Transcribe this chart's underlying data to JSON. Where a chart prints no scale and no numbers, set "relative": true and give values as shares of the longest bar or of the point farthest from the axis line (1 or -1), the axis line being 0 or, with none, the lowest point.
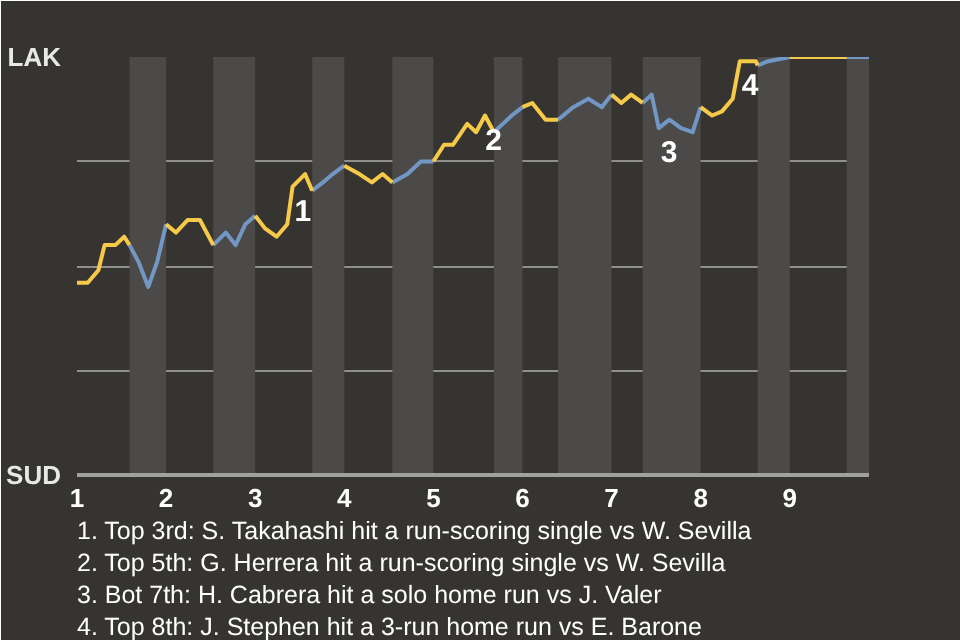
{
  "chart_data": {
    "type": "line",
    "relative": true,
    "x": [
      1.0,
      1.12,
      1.24,
      1.31,
      1.43,
      1.53,
      1.59,
      1.69,
      1.8,
      1.9,
      2.0,
      2.11,
      2.24,
      2.38,
      2.53,
      2.67,
      2.78,
      2.89,
      3.0,
      3.11,
      3.24,
      3.36,
      3.42,
      3.56,
      3.64,
      3.76,
      3.87,
      4.0,
      4.17,
      4.31,
      4.43,
      4.54,
      4.71,
      4.86,
      5.0,
      5.12,
      5.22,
      5.38,
      5.48,
      5.58,
      5.68,
      5.78,
      5.88,
      6.0,
      6.11,
      6.26,
      6.4,
      6.57,
      6.74,
      6.89,
      7.0,
      7.11,
      7.22,
      7.35,
      7.45,
      7.53,
      7.65,
      7.78,
      7.91,
      8.0,
      8.13,
      8.24,
      8.36,
      8.44,
      8.62,
      8.64,
      8.76,
      9.0,
      9.64,
      9.89
    ],
    "series": [
      {
        "color": "#f7c948",
        "values": [
          0.46,
          0.46,
          0.49,
          0.55,
          0.55,
          0.57,
          0.55,
          null,
          null,
          null,
          0.6,
          0.58,
          0.61,
          0.61,
          0.55,
          null,
          null,
          null,
          0.62,
          0.59,
          0.57,
          0.6,
          0.69,
          0.72,
          0.68,
          null,
          null,
          0.74,
          0.72,
          0.7,
          0.72,
          0.7,
          null,
          null,
          0.75,
          0.79,
          0.79,
          0.84,
          0.82,
          0.86,
          0.82,
          null,
          null,
          0.88,
          0.89,
          0.85,
          0.85,
          null,
          null,
          null,
          0.91,
          0.89,
          0.91,
          0.89,
          null,
          null,
          null,
          null,
          null,
          0.88,
          0.86,
          0.87,
          0.9,
          0.99,
          0.99,
          0.98,
          null,
          1,
          1,
          null
        ]
      },
      {
        "color": "#7397c4",
        "values": [
          null,
          null,
          null,
          null,
          null,
          null,
          0.55,
          0.51,
          0.45,
          0.51,
          0.6,
          null,
          null,
          null,
          0.55,
          0.58,
          0.55,
          0.6,
          0.62,
          null,
          null,
          null,
          null,
          null,
          0.68,
          0.7,
          0.72,
          0.74,
          null,
          null,
          null,
          0.7,
          0.72,
          0.75,
          0.75,
          null,
          null,
          null,
          null,
          null,
          0.82,
          0.84,
          0.86,
          0.88,
          null,
          null,
          0.85,
          0.88,
          0.9,
          0.88,
          0.91,
          null,
          null,
          0.89,
          0.91,
          0.83,
          0.85,
          0.83,
          0.82,
          0.88,
          null,
          null,
          null,
          null,
          null,
          0.98,
          0.99,
          1,
          1,
          1
        ]
      }
    ],
    "xlim": [
      1,
      9.89
    ],
    "xticks": [
      1,
      2,
      3,
      4,
      5,
      6,
      7,
      8,
      9
    ],
    "grid": "y",
    "bands": [
      {
        "axis": "x",
        "from": 1.59,
        "to": 2.0,
        "color": "#4b4a48"
      },
      {
        "axis": "x",
        "from": 2.53,
        "to": 3.0,
        "color": "#4b4a48"
      },
      {
        "axis": "x",
        "from": 3.64,
        "to": 4.0,
        "color": "#4b4a48"
      },
      {
        "axis": "x",
        "from": 4.54,
        "to": 5.0,
        "color": "#4b4a48"
      },
      {
        "axis": "x",
        "from": 5.68,
        "to": 6.0,
        "color": "#4b4a48"
      },
      {
        "axis": "x",
        "from": 6.4,
        "to": 7.0,
        "color": "#4b4a48"
      },
      {
        "axis": "x",
        "from": 7.35,
        "to": 8.0,
        "color": "#4b4a48"
      },
      {
        "axis": "x",
        "from": 8.64,
        "to": 9.0,
        "color": "#4b4a48"
      },
      {
        "axis": "x",
        "from": 9.64,
        "to": 9.89,
        "color": "#4b4a48"
      }
    ],
    "annotations": [
      "LAK",
      "SUD",
      {
        "text": "1",
        "x": 3.42,
        "y": 0.69
      },
      {
        "text": "2",
        "x": 5.56,
        "y": 0.86
      },
      {
        "text": "3",
        "x": 7.53,
        "y": 0.83
      },
      {
        "text": "4",
        "x": 8.44,
        "y": 0.99
      },
      "1. Top 3rd: S. Takahashi hit a run-scoring single vs W. Sevilla",
      "2. Top 5th: G. Herrera hit a run-scoring single vs W. Sevilla",
      "3. Bot 7th: H. Cabrera hit a solo home run vs J. Valer",
      "4. Top 8th: J. Stephen hit a 3-run home run vs E. Barone"
    ]
  }
}
